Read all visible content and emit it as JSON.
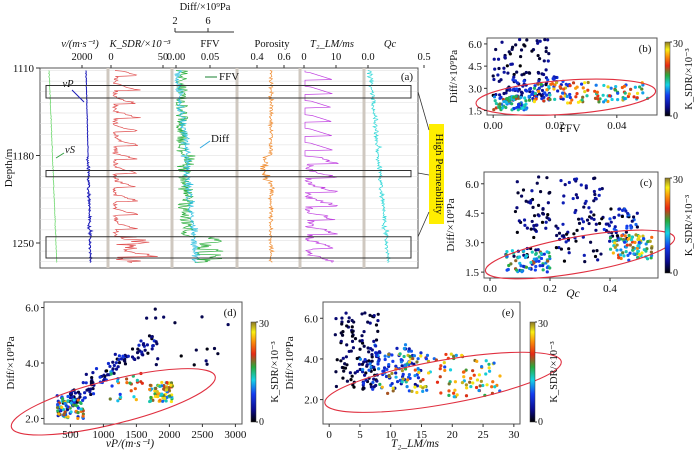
{
  "chart_data": [
    {
      "id": "a",
      "type": "line",
      "panel_label": "(a)",
      "ylabel": "Depth/m",
      "y_ticks": [
        1110,
        1180,
        1250
      ],
      "ylim": [
        1110,
        1270
      ],
      "tracks": [
        {
          "name": "velocity",
          "header": "v/(m·s⁻¹)",
          "ticks": [
            "2000"
          ],
          "curves": [
            {
              "name": "vP",
              "label": "vP",
              "color": "#1a1ab8"
            },
            {
              "name": "vS",
              "label": "vS",
              "color": "#70d870"
            }
          ]
        },
        {
          "name": "k_sdr",
          "header": "K_SDR/×10⁻³",
          "ticks": [
            "0",
            "50"
          ],
          "curves": [
            {
              "name": "K_SDR",
              "color": "#e05050"
            }
          ]
        },
        {
          "name": "ffv_diff",
          "header": "FFV",
          "top_header": "Diff/×10⁹Pa",
          "top_ticks": [
            "2",
            "6"
          ],
          "ticks": [
            "0.00",
            "0.05"
          ],
          "curves": [
            {
              "name": "FFV",
              "label": "FFV",
              "color": "#30b040"
            },
            {
              "name": "Diff",
              "label": "Diff",
              "color": "#30c0e0"
            }
          ]
        },
        {
          "name": "porosity",
          "header": "Porosity",
          "ticks": [
            "0.4",
            "0.6"
          ],
          "curves": [
            {
              "name": "Porosity",
              "color": "#f08c30"
            }
          ]
        },
        {
          "name": "t2lm",
          "header": "T₂_LM/ms",
          "ticks": [
            "0",
            "10"
          ],
          "curves": [
            {
              "name": "T2_LM",
              "color": "#c040e0"
            }
          ]
        },
        {
          "name": "qc",
          "header": "Qc",
          "ticks": [
            "0.0",
            "0.5"
          ],
          "curves": [
            {
              "name": "Qc",
              "color": "#30d8d8"
            }
          ]
        }
      ],
      "high_permeability_zones_depth_m": [
        [
          1124,
          1134
        ],
        [
          1192,
          1197
        ],
        [
          1245,
          1262
        ]
      ],
      "annotation": "High Permeability"
    },
    {
      "id": "b",
      "type": "scatter",
      "panel_label": "(b)",
      "xlabel": "FFV",
      "ylabel": "Diff/×10⁹Pa",
      "xlim": [
        -0.002,
        0.053
      ],
      "ylim": [
        1.2,
        6.4
      ],
      "x_ticks": [
        "0.00",
        "0.02",
        "0.04"
      ],
      "y_ticks": [
        "1.5",
        "3.0",
        "4.5",
        "6.0"
      ],
      "colorbar": {
        "label": "K_SDR/×10⁻³",
        "min": 0,
        "max": 30,
        "ticks": [
          "0",
          "30"
        ]
      },
      "ellipse": {
        "center": [
          0.0235,
          2.4
        ],
        "note": "high-permeability cluster"
      },
      "clusters": [
        {
          "desc": "low K, high Diff",
          "x_range": [
            0.0,
            0.02
          ],
          "y_range": [
            2.5,
            6.3
          ],
          "k_range": [
            0,
            6
          ]
        },
        {
          "desc": "high K, low Diff",
          "x_range": [
            0.0,
            0.05
          ],
          "y_range": [
            1.5,
            3.4
          ],
          "k_range": [
            8,
            30
          ]
        }
      ]
    },
    {
      "id": "c",
      "type": "scatter",
      "panel_label": "(c)",
      "xlabel": "Qc",
      "ylabel": "Diff/×10⁹Pa",
      "xlim": [
        -0.02,
        0.56
      ],
      "ylim": [
        1.2,
        6.6
      ],
      "x_ticks": [
        "0.0",
        "0.2",
        "0.4"
      ],
      "y_ticks": [
        "1.5",
        "3.0",
        "4.5",
        "6.0"
      ],
      "colorbar": {
        "label": "K_SDR/×10⁻³",
        "min": 0,
        "max": 30,
        "ticks": [
          "0",
          "30"
        ]
      },
      "ellipse": {
        "center": [
          0.3,
          2.4
        ]
      }
    },
    {
      "id": "d",
      "type": "scatter",
      "panel_label": "(d)",
      "xlabel": "vP/(m·s⁻¹)",
      "ylabel": "Diff/×10⁹Pa",
      "xlim": [
        100,
        3100
      ],
      "ylim": [
        1.8,
        6.2
      ],
      "x_ticks": [
        "500",
        "1000",
        "1500",
        "2000",
        "2500",
        "3000"
      ],
      "y_ticks": [
        "2.0",
        "4.0",
        "6.0"
      ],
      "colorbar": {
        "label": "K_SDR/×10⁻³",
        "min": 0,
        "max": 30,
        "ticks": [
          "0",
          "30"
        ]
      },
      "ellipse": {
        "center": [
          1150,
          2.6
        ]
      }
    },
    {
      "id": "e",
      "type": "scatter",
      "panel_label": "(e)",
      "xlabel": "T₂_LM/ms",
      "ylabel": "Diff/×10⁹Pa",
      "xlim": [
        -1,
        31
      ],
      "ylim": [
        0.8,
        6.8
      ],
      "x_ticks": [
        "0",
        "5",
        "10",
        "15",
        "20",
        "25",
        "30"
      ],
      "y_ticks": [
        "2.0",
        "4.0",
        "6.0"
      ],
      "colorbar": {
        "label": "K_SDR/×10⁻³",
        "min": 0,
        "max": 30,
        "ticks": [
          "0",
          "30"
        ]
      },
      "ellipse": {
        "center": [
          18.5,
          2.85
        ]
      }
    }
  ],
  "labels": {
    "depth_axis": "Depth/m",
    "vp": "vP",
    "vs": "vS",
    "ffv": "FFV",
    "diff": "Diff",
    "high_perm": "High Permeability"
  }
}
